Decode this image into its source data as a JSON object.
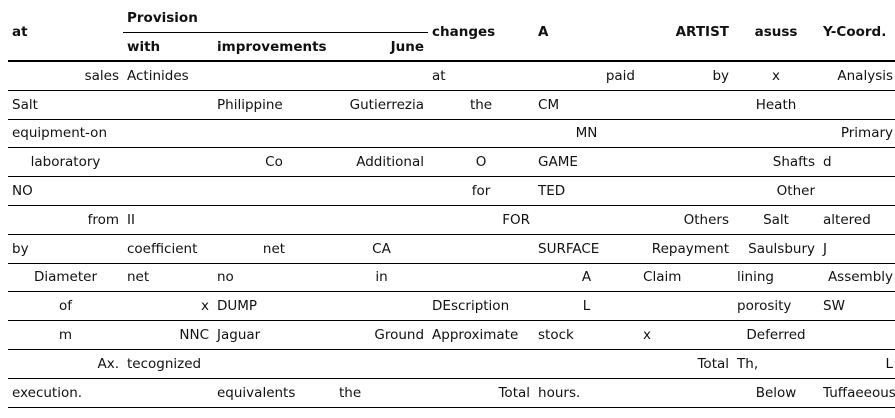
{
  "header": {
    "col_at": "at",
    "group_provision": "Provision",
    "col_with": "with",
    "col_improvements": "improvements",
    "col_june": "June",
    "col_changes": "changes",
    "col_a": "A",
    "col_artist": "ARTIST",
    "col_asuss": "asuss",
    "col_ycoord": "Y-Coord."
  },
  "rows": [
    [
      "sales",
      "Actinides",
      "",
      "",
      "at",
      "paid",
      "by",
      "x",
      "Analysis"
    ],
    [
      "Salt",
      "",
      "Philippine",
      "Gutierrezia",
      "the",
      "CM",
      "",
      "Heath",
      ""
    ],
    [
      "equipment-on",
      "",
      "",
      "",
      "",
      "MN",
      "",
      "",
      "Primary"
    ],
    [
      "laboratory",
      "",
      "Co",
      "Additional",
      "O",
      "GAME",
      "",
      "Shafts",
      "d"
    ],
    [
      "NO",
      "",
      "",
      "",
      "for",
      "TED",
      "",
      "Other",
      ""
    ],
    [
      "from",
      "II",
      "",
      "",
      "FOR",
      "",
      "Others",
      "Salt",
      "altered"
    ],
    [
      "by",
      "coefficient",
      "net",
      "CA",
      "",
      "SURFACE",
      "Repayment",
      "Saulsbury",
      "J"
    ],
    [
      "Diameter",
      "net",
      "no",
      "in",
      "",
      "A",
      "Claim",
      "lining",
      "Assembly"
    ],
    [
      "of",
      "x",
      "DUMP",
      "",
      "DEscription",
      "L",
      "",
      "porosity",
      "SW"
    ],
    [
      "m",
      "NNC",
      "Jaguar",
      "Ground",
      "Approximate",
      "stock",
      "x",
      "Deferred",
      ""
    ],
    [
      "Ax.",
      "tecognized",
      "",
      "",
      "",
      "",
      "Total",
      "Th,",
      "L"
    ],
    [
      "execution.",
      "",
      "equivalents",
      "the",
      "Total",
      "hours.",
      "",
      "Below",
      "Tuffaeeous"
    ]
  ]
}
